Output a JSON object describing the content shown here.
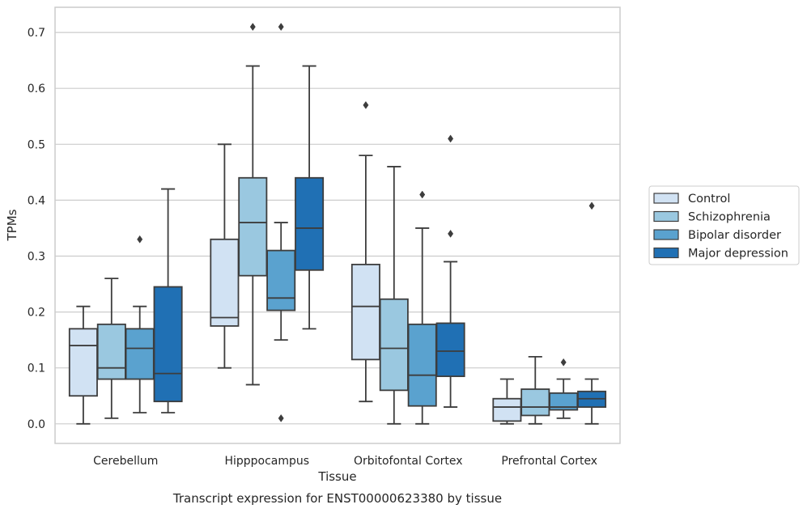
{
  "caption": "Transcript expression for ENST00000623380 by tissue",
  "chart_data": {
    "type": "box",
    "xlabel": "Tissue",
    "ylabel": "TPMs",
    "ylim": [
      -0.035,
      0.745
    ],
    "yticks": [
      0.0,
      0.1,
      0.2,
      0.3,
      0.4,
      0.5,
      0.6,
      0.7
    ],
    "ytick_labels": [
      "0.0",
      "0.1",
      "0.2",
      "0.3",
      "0.4",
      "0.5",
      "0.6",
      "0.7"
    ],
    "grid": "horizontal",
    "legend_position": "right",
    "categories": [
      "Cerebellum",
      "Hipppocampus",
      "Orbitofontal Cortex",
      "Prefrontal Cortex"
    ],
    "series": [
      {
        "name": "Control",
        "color": "#d1e2f3",
        "boxes": [
          {
            "whislo": 0.0,
            "q1": 0.05,
            "med": 0.14,
            "q3": 0.17,
            "whishi": 0.21,
            "fliers": []
          },
          {
            "whislo": 0.1,
            "q1": 0.175,
            "med": 0.19,
            "q3": 0.33,
            "whishi": 0.5,
            "fliers": []
          },
          {
            "whislo": 0.04,
            "q1": 0.115,
            "med": 0.21,
            "q3": 0.285,
            "whishi": 0.48,
            "fliers": [
              0.57
            ]
          },
          {
            "whislo": 0.0,
            "q1": 0.005,
            "med": 0.03,
            "q3": 0.045,
            "whishi": 0.08,
            "fliers": []
          }
        ]
      },
      {
        "name": "Schizophrenia",
        "color": "#9ac8e0",
        "boxes": [
          {
            "whislo": 0.01,
            "q1": 0.08,
            "med": 0.1,
            "q3": 0.178,
            "whishi": 0.26,
            "fliers": []
          },
          {
            "whislo": 0.07,
            "q1": 0.265,
            "med": 0.36,
            "q3": 0.44,
            "whishi": 0.64,
            "fliers": [
              0.71
            ]
          },
          {
            "whislo": 0.0,
            "q1": 0.06,
            "med": 0.135,
            "q3": 0.223,
            "whishi": 0.46,
            "fliers": []
          },
          {
            "whislo": 0.0,
            "q1": 0.015,
            "med": 0.03,
            "q3": 0.062,
            "whishi": 0.12,
            "fliers": []
          }
        ]
      },
      {
        "name": "Bipolar disorder",
        "color": "#5aa2cf",
        "boxes": [
          {
            "whislo": 0.02,
            "q1": 0.08,
            "med": 0.135,
            "q3": 0.17,
            "whishi": 0.21,
            "fliers": [
              0.33
            ]
          },
          {
            "whislo": 0.15,
            "q1": 0.203,
            "med": 0.225,
            "q3": 0.31,
            "whishi": 0.36,
            "fliers": [
              0.71,
              0.01
            ]
          },
          {
            "whislo": 0.0,
            "q1": 0.032,
            "med": 0.087,
            "q3": 0.178,
            "whishi": 0.35,
            "fliers": [
              0.41
            ]
          },
          {
            "whislo": 0.01,
            "q1": 0.025,
            "med": 0.03,
            "q3": 0.055,
            "whishi": 0.08,
            "fliers": [
              0.11
            ]
          }
        ]
      },
      {
        "name": "Major depression",
        "color": "#2070b4",
        "boxes": [
          {
            "whislo": 0.02,
            "q1": 0.04,
            "med": 0.09,
            "q3": 0.245,
            "whishi": 0.42,
            "fliers": []
          },
          {
            "whislo": 0.17,
            "q1": 0.275,
            "med": 0.35,
            "q3": 0.44,
            "whishi": 0.64,
            "fliers": []
          },
          {
            "whislo": 0.03,
            "q1": 0.085,
            "med": 0.13,
            "q3": 0.18,
            "whishi": 0.29,
            "fliers": [
              0.51,
              0.34
            ]
          },
          {
            "whislo": 0.0,
            "q1": 0.03,
            "med": 0.045,
            "q3": 0.058,
            "whishi": 0.08,
            "fliers": [
              0.39
            ]
          }
        ]
      }
    ]
  }
}
